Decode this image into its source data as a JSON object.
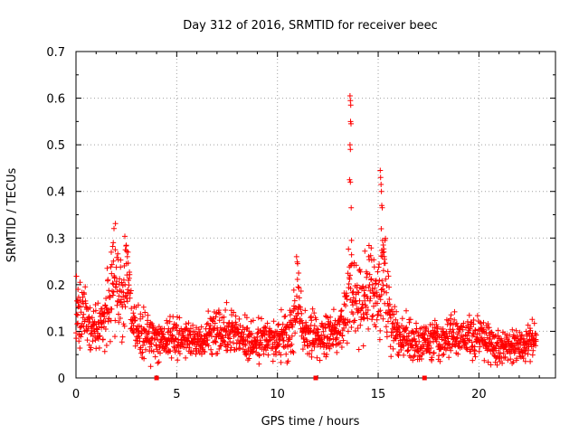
{
  "chart_data": {
    "type": "scatter",
    "title": "Day 312 of 2016, SRMTID for receiver beec",
    "xlabel": "GPS time / hours",
    "ylabel": "SRMTID / TECUs",
    "xlim": [
      0,
      23.8
    ],
    "ylim": [
      0,
      0.7
    ],
    "x_ticks": [
      0,
      5,
      10,
      15,
      20
    ],
    "y_ticks": [
      0,
      0.1,
      0.2,
      0.3,
      0.4,
      0.5,
      0.6,
      0.7
    ],
    "x_tick_labels": [
      "0",
      "5",
      "10",
      "15",
      "20"
    ],
    "y_tick_labels": [
      "0",
      "0.1",
      "0.2",
      "0.3",
      "0.4",
      "0.5",
      "0.6",
      "0.7"
    ],
    "grid": true,
    "marker": "plus",
    "color": "#ff0000",
    "axis_markers_x": [
      4.0,
      11.9,
      17.3
    ],
    "series": [
      {
        "name": "SRMTID",
        "profile": [
          [
            0.0,
            0.15
          ],
          [
            0.3,
            0.14
          ],
          [
            0.6,
            0.12
          ],
          [
            1.0,
            0.1
          ],
          [
            1.4,
            0.12
          ],
          [
            1.7,
            0.18
          ],
          [
            1.9,
            0.22
          ],
          [
            2.1,
            0.17
          ],
          [
            2.4,
            0.2
          ],
          [
            2.6,
            0.21
          ],
          [
            2.8,
            0.12
          ],
          [
            3.2,
            0.1
          ],
          [
            4.0,
            0.08
          ],
          [
            5.0,
            0.09
          ],
          [
            6.0,
            0.08
          ],
          [
            7.0,
            0.1
          ],
          [
            8.0,
            0.09
          ],
          [
            9.0,
            0.08
          ],
          [
            10.0,
            0.08
          ],
          [
            10.7,
            0.1
          ],
          [
            11.0,
            0.17
          ],
          [
            11.3,
            0.1
          ],
          [
            12.0,
            0.09
          ],
          [
            12.8,
            0.1
          ],
          [
            13.3,
            0.12
          ],
          [
            13.6,
            0.2
          ],
          [
            14.0,
            0.15
          ],
          [
            14.5,
            0.18
          ],
          [
            15.0,
            0.17
          ],
          [
            15.3,
            0.22
          ],
          [
            15.6,
            0.12
          ],
          [
            16.0,
            0.09
          ],
          [
            17.0,
            0.08
          ],
          [
            18.0,
            0.08
          ],
          [
            19.0,
            0.09
          ],
          [
            20.0,
            0.09
          ],
          [
            21.0,
            0.07
          ],
          [
            22.0,
            0.07
          ],
          [
            22.8,
            0.08
          ]
        ],
        "spikes": [
          [
            13.6,
            0.605
          ],
          [
            13.62,
            0.595
          ],
          [
            13.64,
            0.585
          ],
          [
            13.63,
            0.55
          ],
          [
            13.65,
            0.545
          ],
          [
            13.6,
            0.5
          ],
          [
            13.62,
            0.49
          ],
          [
            13.58,
            0.425
          ],
          [
            13.62,
            0.42
          ],
          [
            13.66,
            0.365
          ],
          [
            13.68,
            0.295
          ],
          [
            13.7,
            0.245
          ],
          [
            15.1,
            0.445
          ],
          [
            15.12,
            0.43
          ],
          [
            15.14,
            0.415
          ],
          [
            15.16,
            0.4
          ],
          [
            15.18,
            0.37
          ],
          [
            15.2,
            0.365
          ],
          [
            15.15,
            0.32
          ],
          [
            15.22,
            0.295
          ],
          [
            15.25,
            0.285
          ],
          [
            15.28,
            0.27
          ],
          [
            15.3,
            0.26
          ],
          [
            1.85,
            0.29
          ],
          [
            1.95,
            0.275
          ],
          [
            2.45,
            0.275
          ],
          [
            2.55,
            0.26
          ],
          [
            2.5,
            0.245
          ],
          [
            10.95,
            0.26
          ],
          [
            11.0,
            0.245
          ],
          [
            11.05,
            0.225
          ],
          [
            0.2,
            0.205
          ],
          [
            0.1,
            0.19
          ]
        ]
      }
    ]
  }
}
